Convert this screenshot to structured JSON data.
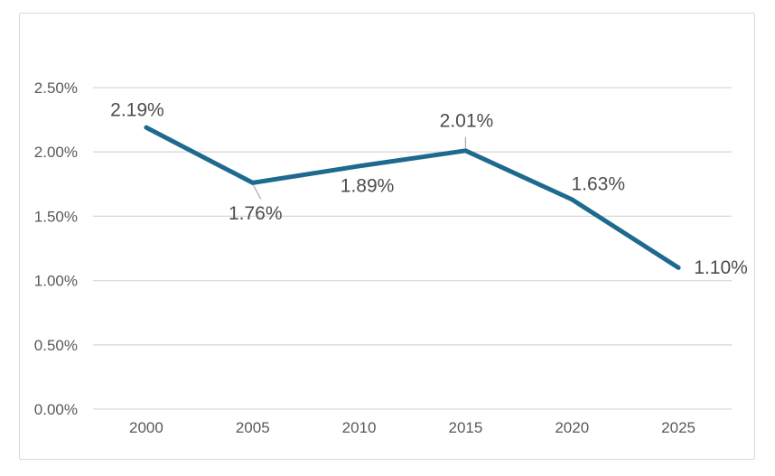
{
  "chart_data": {
    "type": "line",
    "title": "",
    "categories": [
      "2000",
      "2005",
      "2010",
      "2015",
      "2020",
      "2025"
    ],
    "values": [
      2.19,
      1.76,
      1.89,
      2.01,
      1.63,
      1.1
    ],
    "data_labels": [
      "2.19%",
      "1.76%",
      "1.89%",
      "2.01%",
      "1.63%",
      "1.10%"
    ],
    "y_tick_labels": [
      "0.00%",
      "0.50%",
      "1.00%",
      "1.50%",
      "2.00%",
      "2.50%"
    ],
    "y_tick_values": [
      0,
      0.5,
      1.0,
      1.5,
      2.0,
      2.5
    ],
    "ylim": [
      0,
      2.5
    ],
    "xlabel": "",
    "ylabel": "",
    "grid": true,
    "legend": "none",
    "colors": {
      "line": "#1E6A8E",
      "gridline": "#D9D9D9",
      "frame_border": "#D9D9D9",
      "axis_text": "#595959",
      "data_label_text": "#4D4D4D",
      "leader_line": "#A6A6A6",
      "background": "#FFFFFF"
    }
  }
}
